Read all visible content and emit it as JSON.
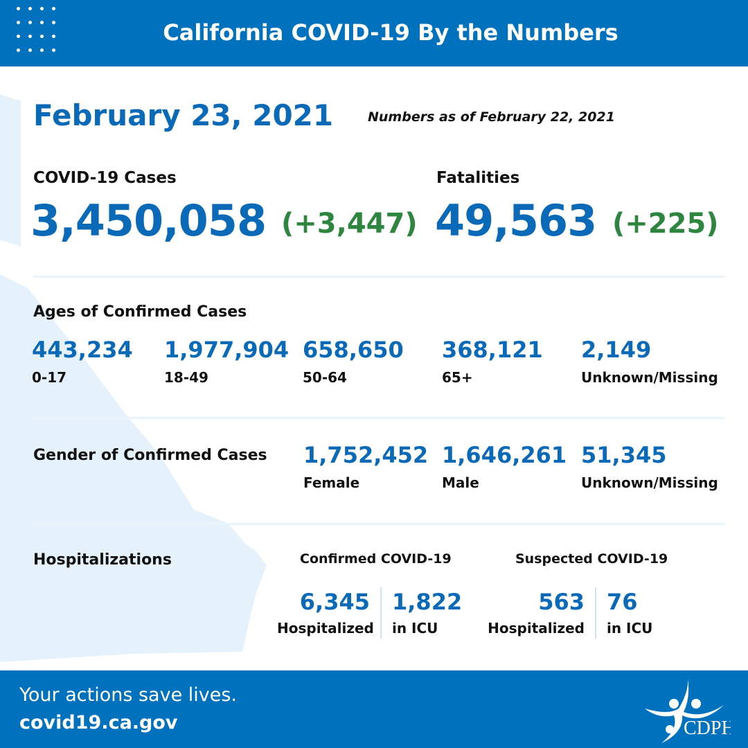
{
  "header": {
    "title": "California COVID-19 By the Numbers"
  },
  "date": "February 23, 2021",
  "as_of": "Numbers as of February 22, 2021",
  "cases": {
    "label": "COVID-19 Cases",
    "value": "3,450,058",
    "change": "(+3,447)"
  },
  "fatalities": {
    "label": "Fatalities",
    "value": "49,563",
    "change": "(+225)"
  },
  "ages": {
    "title": "Ages of Confirmed Cases",
    "items": [
      {
        "value": "443,234",
        "label": "0-17"
      },
      {
        "value": "1,977,904",
        "label": "18-49"
      },
      {
        "value": "658,650",
        "label": "50-64"
      },
      {
        "value": "368,121",
        "label": "65+"
      },
      {
        "value": "2,149",
        "label": "Unknown/Missing"
      }
    ]
  },
  "gender": {
    "title": "Gender of Confirmed Cases",
    "items": [
      {
        "value": "1,752,452",
        "label": "Female"
      },
      {
        "value": "1,646,261",
        "label": "Male"
      },
      {
        "value": "51,345",
        "label": "Unknown/Missing"
      }
    ]
  },
  "hosp": {
    "title": "Hospitalizations",
    "confirmed": {
      "title": "Confirmed COVID-19",
      "hospitalized": "6,345",
      "hosp_label": "Hospitalized",
      "icu": "1,822",
      "icu_label": "in ICU"
    },
    "suspected": {
      "title": "Suspected COVID-19",
      "hospitalized": "563",
      "hosp_label": "Hospitalized",
      "icu": "76",
      "icu_label": "in ICU"
    }
  },
  "footer": {
    "tagline": "Your actions save lives.",
    "url": "covid19.ca.gov",
    "logo_text": "CDPH"
  },
  "colors": {
    "brand_blue": "#0071bc",
    "number_blue": "#0a6ab8",
    "increase_green": "#2e8540",
    "map_bg": "#e6f2fb"
  }
}
